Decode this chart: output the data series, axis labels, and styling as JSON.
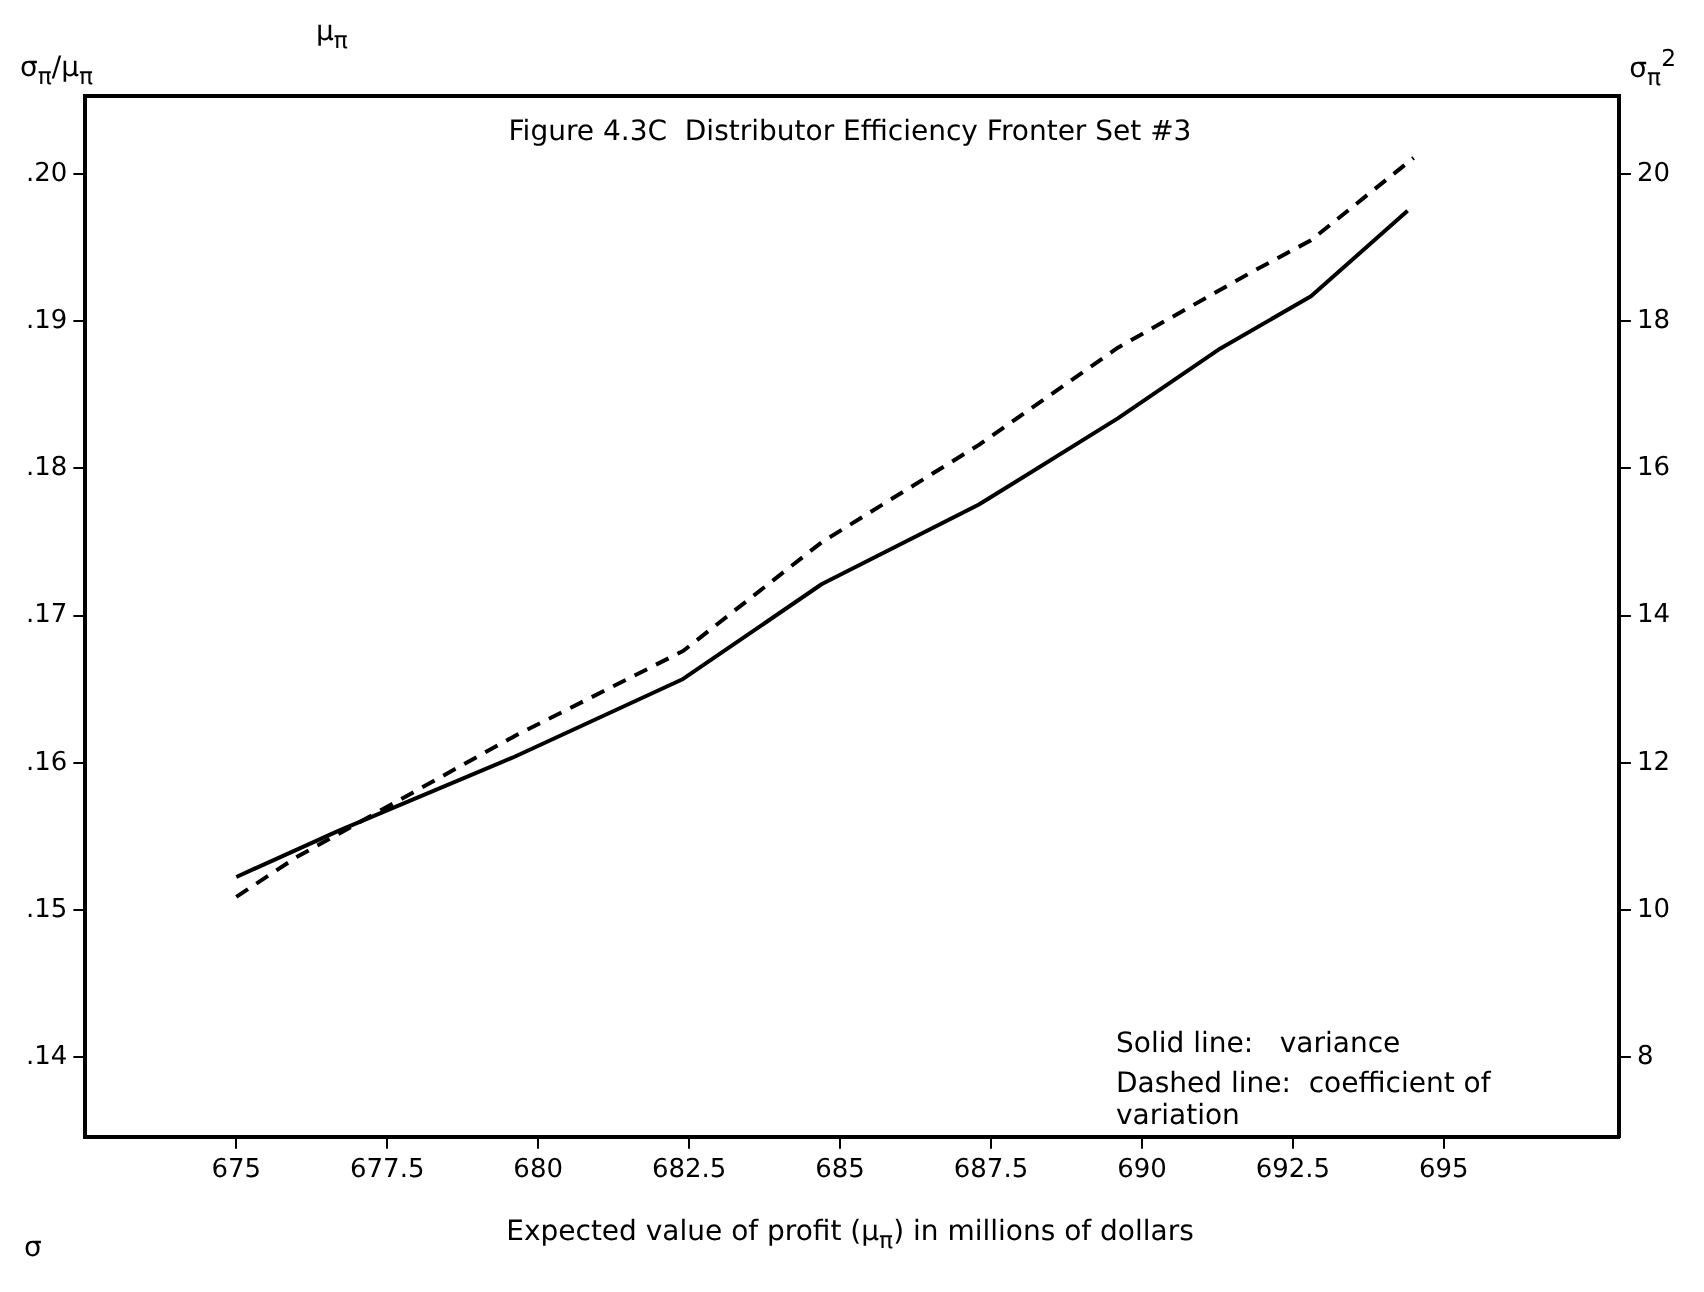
{
  "chart_data": {
    "type": "line",
    "title": "Figure 4.3C  Distributor Efficiency Fronter Set #3",
    "xlabel": "Expected value of profit (μ$_{π}$) in millions of dollars",
    "ylabel": "σ$_{π}$/μ$_{π}$",
    "y2label": "σ$_{π}$$^{2}$",
    "annotations": [
      "Solid line:   variance",
      "Dashed line:  coefficient of variation",
      "μ$_{π}$",
      "σ"
    ],
    "series": [
      {
        "axis": "y2",
        "line_style": "solid",
        "color": "#000000",
        "x": [
          675,
          676.7,
          679.6,
          682.4,
          684.7,
          687.3,
          689.6,
          691.3,
          692.8,
          694.4
        ],
        "values": [
          10.45,
          11.08,
          12.08,
          13.14,
          14.43,
          15.51,
          16.68,
          17.63,
          18.34,
          19.5
        ]
      },
      {
        "axis": "y",
        "line_style": "dashed",
        "color": "#000000",
        "x": [
          675,
          676,
          679.6,
          682.4,
          684.7,
          687.3,
          689.6,
          691.8,
          692.8,
          694.5
        ],
        "values": [
          0.1509,
          0.1536,
          0.1618,
          0.1676,
          0.175,
          0.1816,
          0.1882,
          0.1933,
          0.1955,
          0.2011
        ]
      }
    ],
    "xlim": [
      672.5,
      697.9
    ],
    "xticks": [
      675,
      677.5,
      680,
      682.5,
      685,
      687.5,
      690,
      692.5,
      695
    ],
    "ylim": [
      0.1346,
      0.2053
    ],
    "yticks": [
      {
        "value": 0.14,
        "label": ".14"
      },
      {
        "value": 0.15,
        "label": ".15"
      },
      {
        "value": 0.16,
        "label": ".16"
      },
      {
        "value": 0.17,
        "label": ".17"
      },
      {
        "value": 0.18,
        "label": ".18"
      },
      {
        "value": 0.19,
        "label": ".19"
      },
      {
        "value": 0.2,
        "label": ".20"
      }
    ],
    "y2lim": [
      6.92,
      21.06
    ],
    "y2ticks": [
      8,
      10,
      12,
      14,
      16,
      18,
      20
    ],
    "grid": false,
    "legend": false,
    "marker": "none"
  }
}
